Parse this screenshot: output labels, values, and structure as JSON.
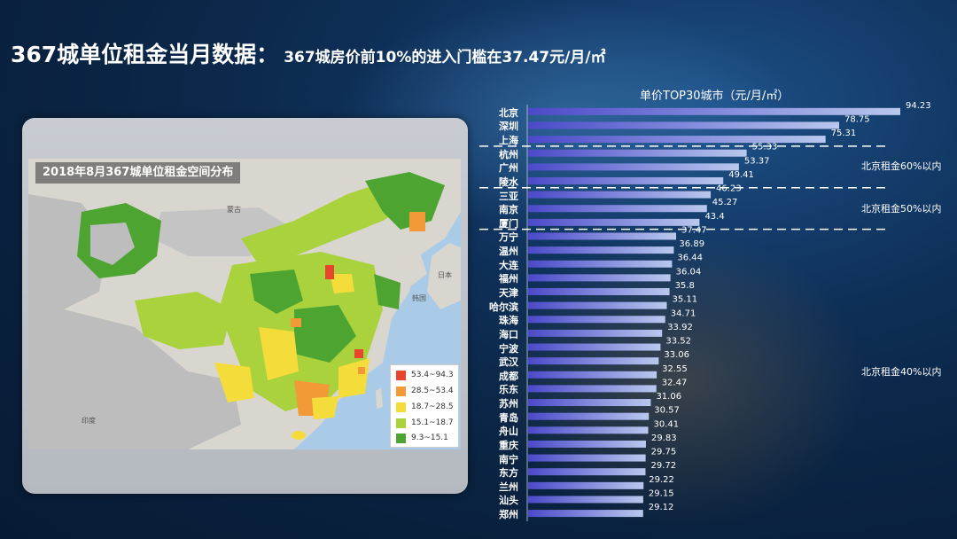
{
  "header": {
    "title": "367城单位租金当月数据：",
    "subtitle": "367城房价前10%的进入门槛在37.47元/月/㎡"
  },
  "map": {
    "caption": "2018年8月367城单位租金空间分布",
    "place_labels": [
      "蒙古",
      "印度",
      "韩国",
      "日本"
    ],
    "legend": [
      {
        "label": "53.4~94.3",
        "color": "#e8452d"
      },
      {
        "label": "28.5~53.4",
        "color": "#f29a38"
      },
      {
        "label": "18.7~28.5",
        "color": "#f4dc3a"
      },
      {
        "label": "15.1~18.7",
        "color": "#a9d23c"
      },
      {
        "label": "9.3~15.1",
        "color": "#4da431"
      }
    ]
  },
  "chart_data": {
    "type": "bar",
    "orientation": "horizontal",
    "title": "单价TOP30城市（元/月/㎡）",
    "categories": [
      "北京",
      "深圳",
      "上海",
      "杭州",
      "广州",
      "陵水",
      "三亚",
      "南京",
      "厦门",
      "万宁",
      "温州",
      "大连",
      "福州",
      "天津",
      "哈尔滨",
      "珠海",
      "海口",
      "宁波",
      "武汉",
      "成都",
      "乐东",
      "苏州",
      "青岛",
      "舟山",
      "重庆",
      "南宁",
      "东方",
      "兰州",
      "汕头",
      "郑州"
    ],
    "values": [
      94.23,
      78.75,
      75.31,
      55.33,
      53.37,
      49.41,
      46.23,
      45.27,
      43.4,
      37.47,
      36.89,
      36.44,
      36.04,
      35.8,
      35.11,
      34.71,
      33.92,
      33.52,
      33.06,
      32.55,
      32.47,
      31.06,
      30.57,
      30.41,
      29.83,
      29.75,
      29.72,
      29.22,
      29.15,
      29.12
    ],
    "annotations": [
      "北京租金60%以内",
      "北京租金50%以内",
      "北京租金40%以内"
    ],
    "bar_color_start": "#4b49c9",
    "bar_color_end": "#b9c8ee"
  }
}
